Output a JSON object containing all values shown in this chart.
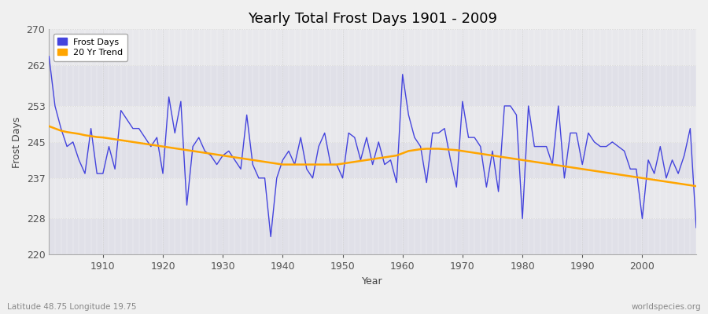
{
  "title": "Yearly Total Frost Days 1901 - 2009",
  "xlabel": "Year",
  "ylabel": "Frost Days",
  "bottom_left_label": "Latitude 48.75 Longitude 19.75",
  "bottom_right_label": "worldspecies.org",
  "legend_labels": [
    "Frost Days",
    "20 Yr Trend"
  ],
  "line_color": "#4444dd",
  "trend_color": "#FFA500",
  "bg_color": "#e8e8ec",
  "fig_bg_color": "#f0f0f0",
  "ylim": [
    220,
    270
  ],
  "yticks": [
    220,
    228,
    237,
    245,
    253,
    262,
    270
  ],
  "years": [
    1901,
    1902,
    1903,
    1904,
    1905,
    1906,
    1907,
    1908,
    1909,
    1910,
    1911,
    1912,
    1913,
    1914,
    1915,
    1916,
    1917,
    1918,
    1919,
    1920,
    1921,
    1922,
    1923,
    1924,
    1925,
    1926,
    1927,
    1928,
    1929,
    1930,
    1931,
    1932,
    1933,
    1934,
    1935,
    1936,
    1937,
    1938,
    1939,
    1940,
    1941,
    1942,
    1943,
    1944,
    1945,
    1946,
    1947,
    1948,
    1949,
    1950,
    1951,
    1952,
    1953,
    1954,
    1955,
    1956,
    1957,
    1958,
    1959,
    1960,
    1961,
    1962,
    1963,
    1964,
    1965,
    1966,
    1967,
    1968,
    1969,
    1970,
    1971,
    1972,
    1973,
    1974,
    1975,
    1976,
    1977,
    1978,
    1979,
    1980,
    1981,
    1982,
    1983,
    1984,
    1985,
    1986,
    1987,
    1988,
    1989,
    1990,
    1991,
    1992,
    1993,
    1994,
    1995,
    1996,
    1997,
    1998,
    1999,
    2000,
    2001,
    2002,
    2003,
    2004,
    2005,
    2006,
    2007,
    2008,
    2009
  ],
  "frost_days": [
    264,
    253,
    248,
    244,
    245,
    241,
    238,
    248,
    238,
    238,
    244,
    239,
    252,
    250,
    248,
    248,
    246,
    244,
    246,
    238,
    255,
    247,
    254,
    231,
    244,
    246,
    243,
    242,
    240,
    242,
    243,
    241,
    239,
    251,
    240,
    237,
    237,
    224,
    237,
    241,
    243,
    240,
    246,
    239,
    237,
    244,
    247,
    240,
    240,
    237,
    247,
    246,
    241,
    246,
    240,
    245,
    240,
    241,
    236,
    260,
    251,
    246,
    244,
    236,
    247,
    247,
    248,
    241,
    235,
    254,
    246,
    246,
    244,
    235,
    243,
    234,
    253,
    253,
    251,
    228,
    253,
    244,
    244,
    244,
    240,
    253,
    237,
    247,
    247,
    240,
    247,
    245,
    244,
    244,
    245,
    244,
    243,
    239,
    239,
    228,
    241,
    238,
    244,
    237,
    241,
    238,
    242,
    248,
    226
  ],
  "trend_years": [
    1901,
    1902,
    1903,
    1904,
    1905,
    1906,
    1907,
    1908,
    1909,
    1910,
    1911,
    1912,
    1913,
    1914,
    1915,
    1916,
    1917,
    1918,
    1919,
    1920,
    1921,
    1922,
    1923,
    1924,
    1925,
    1926,
    1927,
    1928,
    1929,
    1930,
    1931,
    1932,
    1933,
    1934,
    1935,
    1936,
    1937,
    1938,
    1939,
    1940,
    1941,
    1942,
    1943,
    1944,
    1945,
    1946,
    1947,
    1948,
    1949,
    1950,
    1951,
    1952,
    1953,
    1954,
    1955,
    1956,
    1957,
    1958,
    1959,
    1960,
    1961,
    1962,
    1963,
    1964,
    1965,
    1966,
    1967,
    1968,
    1969,
    1970,
    1971,
    1972,
    1973,
    1974,
    1975,
    1976,
    1977,
    1978,
    1979,
    1980,
    1981,
    1982,
    1983,
    1984,
    1985,
    1986,
    1987,
    1988,
    1989,
    1990,
    1991,
    1992,
    1993,
    1994,
    1995,
    1996,
    1997,
    1998,
    1999,
    2000,
    2001,
    2002,
    2003,
    2004,
    2005,
    2006,
    2007,
    2008,
    2009
  ],
  "trend_values": [
    248.5,
    248.0,
    247.5,
    247.2,
    247.0,
    246.8,
    246.5,
    246.3,
    246.1,
    246.0,
    245.8,
    245.6,
    245.4,
    245.2,
    245.0,
    244.8,
    244.6,
    244.4,
    244.2,
    244.0,
    243.8,
    243.6,
    243.4,
    243.2,
    243.0,
    242.8,
    242.6,
    242.4,
    242.2,
    242.0,
    241.8,
    241.6,
    241.4,
    241.2,
    241.0,
    240.8,
    240.6,
    240.4,
    240.2,
    240.0,
    240.0,
    240.0,
    240.0,
    240.0,
    240.0,
    240.0,
    240.0,
    240.0,
    240.0,
    240.2,
    240.4,
    240.6,
    240.8,
    241.0,
    241.2,
    241.4,
    241.6,
    241.8,
    242.0,
    242.5,
    243.0,
    243.2,
    243.4,
    243.5,
    243.5,
    243.5,
    243.4,
    243.3,
    243.2,
    243.0,
    242.8,
    242.6,
    242.4,
    242.2,
    242.0,
    241.8,
    241.6,
    241.4,
    241.2,
    241.0,
    240.8,
    240.6,
    240.4,
    240.2,
    240.0,
    239.8,
    239.6,
    239.4,
    239.2,
    239.0,
    238.8,
    238.6,
    238.4,
    238.2,
    238.0,
    237.8,
    237.6,
    237.4,
    237.2,
    237.0,
    236.8,
    236.6,
    236.4,
    236.2,
    236.0,
    235.8,
    235.6,
    235.4,
    235.2
  ]
}
